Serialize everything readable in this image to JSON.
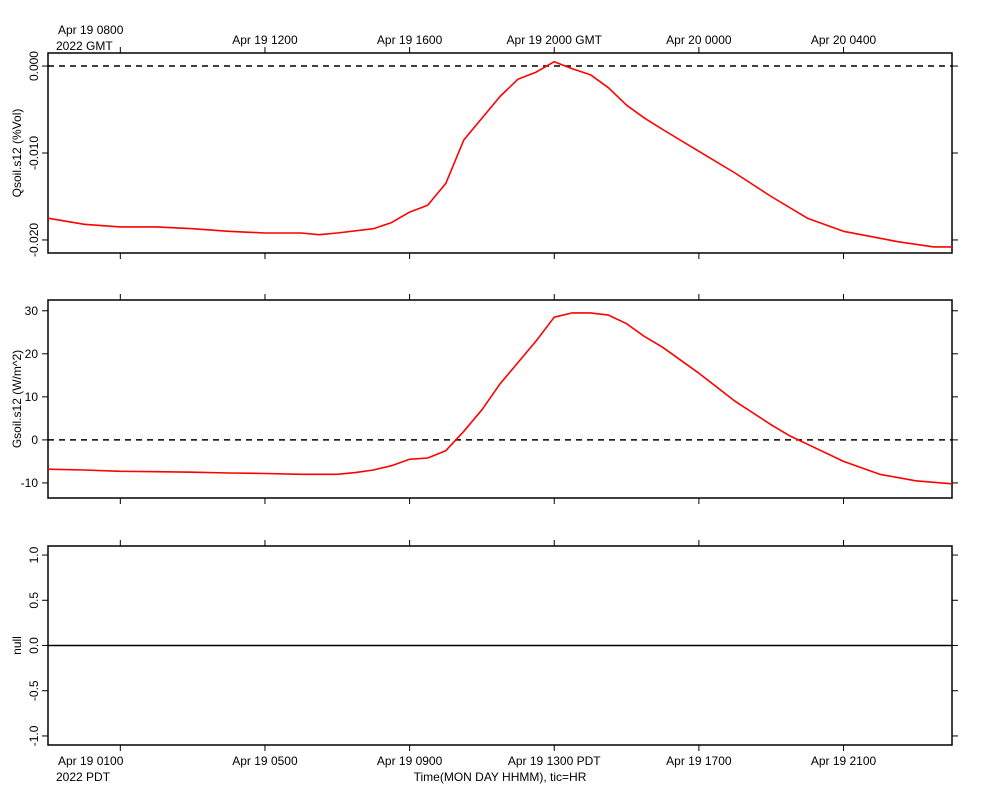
{
  "header": {
    "gmt_first_tick": "Apr 19 0800",
    "gmt_year": "2022 GMT",
    "gmt_ticks": [
      "Apr 19 1200",
      "Apr 19 1600",
      "Apr 19 2000 GMT",
      "Apr 20 0000",
      "Apr 20 0400"
    ]
  },
  "footer": {
    "pdt_first_tick": "Apr 19 0100",
    "pdt_year": "2022 PDT",
    "pdt_ticks": [
      "Apr 19 0500",
      "Apr 19 0900",
      "Apr 19 1300 PDT",
      "Apr 19 1700",
      "Apr 19 2100"
    ],
    "xlabel": "Time(MON DAY HHMM), tic=HR"
  },
  "colors": {
    "series": "#ff0000",
    "axis": "#000000",
    "reference": "#000000"
  },
  "chart_data": [
    {
      "type": "line",
      "id": "qsoil",
      "ylabel": "Qsoil.s12 (%Vol)",
      "ylim": [
        -0.0215,
        0.0015
      ],
      "yticks": [
        0.0,
        -0.01,
        -0.02
      ],
      "ytick_labels": [
        "0.000",
        "-0.010",
        "-0.020"
      ],
      "reference_line": 0.0,
      "x_hours_pdt": [
        -1,
        0,
        1,
        2,
        3,
        4,
        5,
        6,
        6.5,
        7,
        8,
        8.5,
        9,
        9.5,
        10,
        10.5,
        11,
        11.5,
        12,
        12.5,
        13,
        13.5,
        14,
        14.5,
        15,
        15.5,
        16,
        17,
        18,
        19,
        20,
        21,
        22,
        22.5,
        23,
        23.5,
        24
      ],
      "y_values": [
        -0.0175,
        -0.0182,
        -0.0185,
        -0.0185,
        -0.0187,
        -0.019,
        -0.0192,
        -0.0192,
        -0.0194,
        -0.0192,
        -0.0187,
        -0.018,
        -0.0168,
        -0.016,
        -0.0135,
        -0.0085,
        -0.006,
        -0.0035,
        -0.0015,
        -0.0007,
        0.0005,
        -0.0003,
        -0.001,
        -0.0025,
        -0.0045,
        -0.006,
        -0.0073,
        -0.0098,
        -0.0123,
        -0.015,
        -0.0175,
        -0.019,
        -0.0198,
        -0.0202,
        -0.0205,
        -0.0208,
        -0.0208
      ]
    },
    {
      "type": "line",
      "id": "gsoil",
      "ylabel": "Gsoil.s12 (W/m^2)",
      "ylim": [
        -13.5,
        32.5
      ],
      "yticks": [
        30,
        20,
        10,
        0,
        -10
      ],
      "ytick_labels": [
        "30",
        "20",
        "10",
        "0",
        "-10"
      ],
      "reference_line": 0,
      "x_hours_pdt": [
        -1,
        0,
        1,
        2,
        3,
        4,
        5,
        6,
        7,
        7.5,
        8,
        8.5,
        9,
        9.5,
        10,
        10.5,
        11,
        11.5,
        12,
        12.5,
        13,
        13.5,
        14,
        14.5,
        15,
        15.5,
        16,
        17,
        18,
        19,
        19.5,
        20,
        21,
        22,
        23,
        24
      ],
      "y_values": [
        -6.8,
        -7.0,
        -7.3,
        -7.4,
        -7.5,
        -7.7,
        -7.8,
        -8.0,
        -8.0,
        -7.6,
        -7.0,
        -6.0,
        -4.5,
        -4.2,
        -2.5,
        2.0,
        7.0,
        13.0,
        18.0,
        23.0,
        28.5,
        29.5,
        29.5,
        29.0,
        27.0,
        24.0,
        21.5,
        15.5,
        9.0,
        3.5,
        1.0,
        -1.0,
        -5.0,
        -8.0,
        -9.5,
        -10.2
      ]
    },
    {
      "type": "line",
      "id": "null",
      "ylabel": "null",
      "ylim": [
        -1.1,
        1.1
      ],
      "yticks": [
        1.0,
        0.5,
        0.0,
        -0.5,
        -1.0
      ],
      "ytick_labels": [
        "1.0",
        "0.5",
        "0.0",
        "-0.5",
        "-1.0"
      ],
      "reference_line": 0.0,
      "x_hours_pdt": [],
      "y_values": []
    }
  ],
  "x_axis": {
    "range_hours_pdt": [
      -1,
      24
    ],
    "major_ticks_hours_pdt": [
      1,
      5,
      9,
      13,
      17,
      21
    ]
  }
}
